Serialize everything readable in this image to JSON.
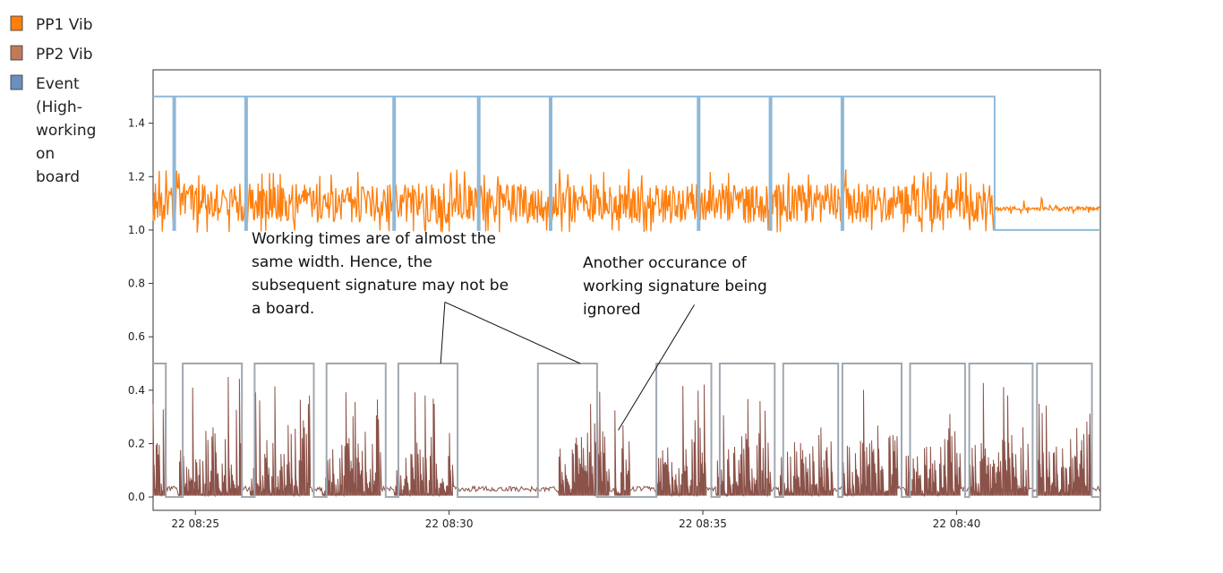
{
  "chart_data": {
    "type": "line",
    "title": "",
    "xlabel": "",
    "ylabel": "",
    "xlim": [
      "08:24:10",
      "08:42:50"
    ],
    "ylim": [
      -0.05,
      1.6
    ],
    "grid": false,
    "x_ticks": [
      {
        "time": "08:25:00",
        "label": "22 08:25"
      },
      {
        "time": "08:30:00",
        "label": "22 08:30"
      },
      {
        "time": "08:35:00",
        "label": "22 08:35"
      },
      {
        "time": "08:40:00",
        "label": "22 08:40"
      }
    ],
    "y_ticks": [
      {
        "value": 0.0,
        "label": "0.0"
      },
      {
        "value": 0.2,
        "label": "0.2"
      },
      {
        "value": 0.4,
        "label": "0.4"
      },
      {
        "value": 0.6,
        "label": "0.6"
      },
      {
        "value": 0.8,
        "label": "0.8"
      },
      {
        "value": 1.0,
        "label": "1.0"
      },
      {
        "value": 1.2,
        "label": "1.2"
      },
      {
        "value": 1.4,
        "label": "1.4"
      }
    ],
    "legend": {
      "placement": "top-left, outside plot",
      "entries": [
        {
          "series": "PP1 Vib",
          "lines": [
            "PP1 Vib"
          ],
          "color": "#ff7f0e"
        },
        {
          "series": "PP2 Vib",
          "lines": [
            "PP2 Vib"
          ],
          "color": "#c07a5a"
        },
        {
          "series": "Event (High-working on board",
          "lines": [
            "Event",
            "(High-",
            "working",
            "on",
            "board"
          ],
          "color": "#6b8fbf"
        }
      ]
    },
    "series": [
      {
        "name": "PP1 Vib",
        "color": "#ff7f0e",
        "band_while_working": [
          1.0,
          1.2
        ],
        "level_after": 1.08,
        "segments": [
          {
            "start": "08:24:10",
            "end": "08:40:45",
            "low": 1.0,
            "high": 1.2
          },
          {
            "start": "08:40:45",
            "end": "08:42:50",
            "low": 1.07,
            "high": 1.09
          }
        ]
      },
      {
        "name": "PP2 Vib",
        "color": "#8b5249",
        "idle_level": 0.03,
        "segments": [
          {
            "start": "08:24:10",
            "end": "08:24:25",
            "low": 0.0,
            "high": 0.3
          },
          {
            "start": "08:24:40",
            "end": "08:25:55",
            "low": 0.0,
            "high": 0.35
          },
          {
            "start": "08:26:05",
            "end": "08:27:15",
            "low": 0.0,
            "high": 0.33
          },
          {
            "start": "08:27:30",
            "end": "08:28:40",
            "low": 0.0,
            "high": 0.3
          },
          {
            "start": "08:28:55",
            "end": "08:30:05",
            "low": 0.0,
            "high": 0.3
          },
          {
            "start": "08:32:10",
            "end": "08:33:10",
            "low": 0.0,
            "high": 0.33
          },
          {
            "start": "08:33:15",
            "end": "08:33:35",
            "low": 0.0,
            "high": 0.24
          },
          {
            "start": "08:34:05",
            "end": "08:35:05",
            "low": 0.0,
            "high": 0.33
          },
          {
            "start": "08:35:15",
            "end": "08:36:20",
            "low": 0.0,
            "high": 0.3
          },
          {
            "start": "08:36:30",
            "end": "08:37:35",
            "low": 0.0,
            "high": 0.3
          },
          {
            "start": "08:37:45",
            "end": "08:38:50",
            "low": 0.0,
            "high": 0.32
          },
          {
            "start": "08:39:00",
            "end": "08:40:05",
            "low": 0.0,
            "high": 0.3
          },
          {
            "start": "08:40:15",
            "end": "08:41:25",
            "low": 0.0,
            "high": 0.33
          },
          {
            "start": "08:41:35",
            "end": "08:42:40",
            "low": 0.0,
            "high": 0.3
          }
        ]
      },
      {
        "name": "Event (High-working on board",
        "color": "#8fb8d8",
        "high": 1.5,
        "low": 1.0,
        "low_pulses": [
          "08:24:35",
          "08:26:00",
          "08:28:55",
          "08:30:35",
          "08:32:00",
          "08:34:55",
          "08:36:20",
          "08:37:45"
        ],
        "end_high": "08:40:45"
      },
      {
        "name": "Event (High-working on board",
        "color": "#a0a8b0",
        "high": 0.5,
        "low": 0.0,
        "high_windows": [
          [
            "08:24:10",
            "08:24:25"
          ],
          [
            "08:24:45",
            "08:25:55"
          ],
          [
            "08:26:10",
            "08:27:20"
          ],
          [
            "08:27:35",
            "08:28:45"
          ],
          [
            "08:29:00",
            "08:30:10"
          ],
          [
            "08:31:45",
            "08:32:55"
          ],
          [
            "08:34:05",
            "08:35:10"
          ],
          [
            "08:35:20",
            "08:36:25"
          ],
          [
            "08:36:35",
            "08:37:40"
          ],
          [
            "08:37:45",
            "08:38:55"
          ],
          [
            "08:39:05",
            "08:40:10"
          ],
          [
            "08:40:15",
            "08:41:30"
          ],
          [
            "08:41:35",
            "08:42:40"
          ]
        ]
      }
    ],
    "annotations": [
      {
        "lines": [
          "Working times are of almost the",
          "same width. Hence, the",
          "subsequent signature may not be",
          "a board."
        ],
        "pointers": [
          {
            "from_time": "08:29:55",
            "from_value": 0.73,
            "to_time": "08:29:50",
            "to_value": 0.5
          },
          {
            "from_time": "08:29:55",
            "from_value": 0.73,
            "to_time": "08:32:35",
            "to_value": 0.5
          }
        ]
      },
      {
        "lines": [
          "Another occurance of",
          "working signature being",
          "ignored"
        ],
        "pointers": [
          {
            "from_time": "08:34:50",
            "from_value": 0.72,
            "to_time": "08:33:20",
            "to_value": 0.25
          }
        ]
      }
    ]
  }
}
